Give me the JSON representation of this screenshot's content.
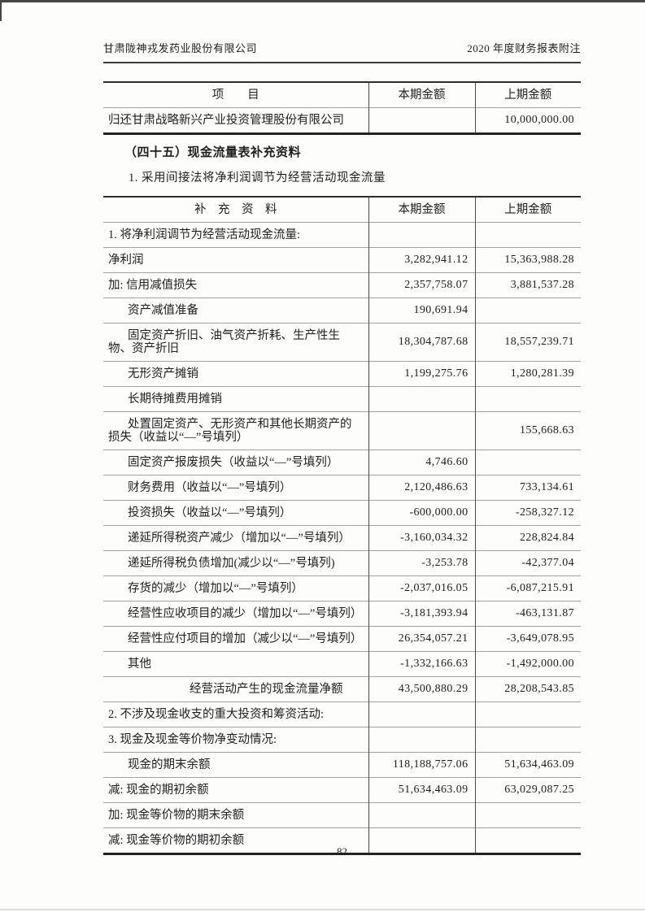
{
  "page": {
    "header_left": "甘肃陇神戎发药业股份有限公司",
    "header_right": "2020 年度财务报表附注",
    "page_number": "82"
  },
  "repayment_table": {
    "columns": {
      "item": "项　　目",
      "current": "本期金额",
      "prior": "上期金额"
    },
    "rows": [
      {
        "label": "归还甘肃战略新兴产业投资管理股份有限公司",
        "current": "",
        "prior": "10,000,000.00",
        "indent": 0
      }
    ]
  },
  "section": {
    "heading": "（四十五）现金流量表补充资料",
    "subheading": "1. 采用间接法将净利润调节为经营活动现金流量"
  },
  "supplement_table": {
    "columns": {
      "item": "补　充　资　料",
      "current": "本期金额",
      "prior": "上期金额"
    },
    "rows": [
      {
        "label": "1. 将净利润调节为经营活动现金流量:",
        "current": "",
        "prior": "",
        "indent": 0
      },
      {
        "label": "净利润",
        "current": "3,282,941.12",
        "prior": "15,363,988.28",
        "indent": 0
      },
      {
        "label": "加: 信用减值损失",
        "current": "2,357,758.07",
        "prior": "3,881,537.28",
        "indent": 0
      },
      {
        "label": "资产减值准备",
        "current": "190,691.94",
        "prior": "",
        "indent": 1
      },
      {
        "label": "固定资产折旧、油气资产折耗、生产性生物、资产折旧",
        "current": "18,304,787.68",
        "prior": "18,557,239.71",
        "indent": 1
      },
      {
        "label": "无形资产摊销",
        "current": "1,199,275.76",
        "prior": "1,280,281.39",
        "indent": 1
      },
      {
        "label": "长期待摊费用摊销",
        "current": "",
        "prior": "",
        "indent": 1
      },
      {
        "label": "处置固定资产、无形资产和其他长期资产的损失（收益以“—”号填列）",
        "current": "",
        "prior": "155,668.63",
        "indent": 1
      },
      {
        "label": "固定资产报废损失（收益以“—”号填列）",
        "current": "4,746.60",
        "prior": "",
        "indent": 1
      },
      {
        "label": "财务费用（收益以“—”号填列）",
        "current": "2,120,486.63",
        "prior": "733,134.61",
        "indent": 1
      },
      {
        "label": "投资损失（收益以“—”号填列）",
        "current": "-600,000.00",
        "prior": "-258,327.12",
        "indent": 1
      },
      {
        "label": "递延所得税资产减少（增加以“—”号填列）",
        "current": "-3,160,034.32",
        "prior": "228,824.84",
        "indent": 1
      },
      {
        "label": "递延所得税负债增加(减少以“—”号填列)",
        "current": "-3,253.78",
        "prior": "-42,377.04",
        "indent": 1
      },
      {
        "label": "存货的减少（增加以“—”号填列）",
        "current": "-2,037,016.05",
        "prior": "-6,087,215.91",
        "indent": 1
      },
      {
        "label": "经营性应收项目的减少（增加以“—”号填列）",
        "current": "-3,181,393.94",
        "prior": "-463,131.87",
        "indent": 1
      },
      {
        "label": "经营性应付项目的增加（减少以“—”号填列）",
        "current": "26,354,057.21",
        "prior": "-3,649,078.95",
        "indent": 1
      },
      {
        "label": "其他",
        "current": "-1,332,166.63",
        "prior": "-1,492,000.00",
        "indent": 1
      },
      {
        "label": "经营活动产生的现金流量净额",
        "current": "43,500,880.29",
        "prior": "28,208,543.85",
        "indent": 2
      },
      {
        "label": "2. 不涉及现金收支的重大投资和筹资活动:",
        "current": "",
        "prior": "",
        "indent": 0
      },
      {
        "label": "3. 现金及现金等价物净变动情况:",
        "current": "",
        "prior": "",
        "indent": 0
      },
      {
        "label": "现金的期末余额",
        "current": "118,188,757.06",
        "prior": "51,634,463.09",
        "indent": 1
      },
      {
        "label": "减: 现金的期初余额",
        "current": "51,634,463.09",
        "prior": "63,029,087.25",
        "indent": 0
      },
      {
        "label": "加: 现金等价物的期末余额",
        "current": "",
        "prior": "",
        "indent": 0
      },
      {
        "label": "减: 现金等价物的期初余额",
        "current": "",
        "prior": "",
        "indent": 0
      }
    ]
  }
}
